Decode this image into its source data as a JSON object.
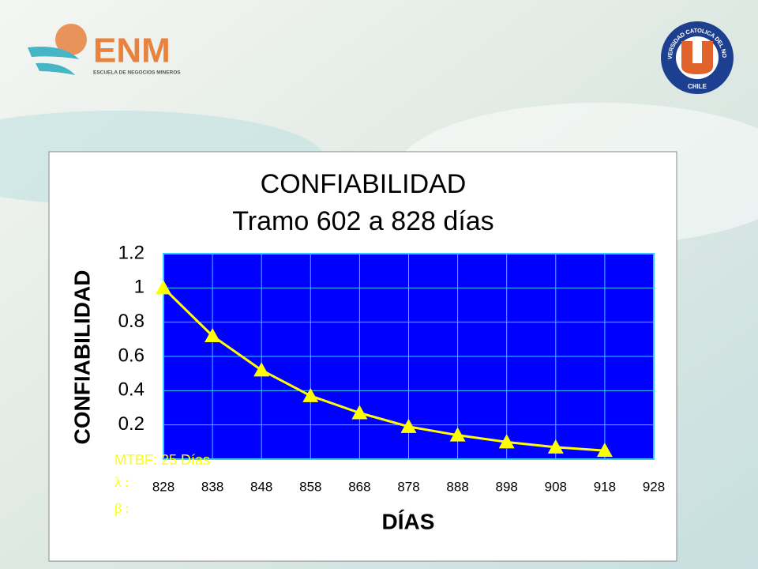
{
  "logos": {
    "enm": "ENM",
    "enm_subtitle": "ESCUELA DE NEGOCIOS MINEROS",
    "ucn_ring": "UNIVERSIDAD CATOLICA DEL NORTE",
    "ucn_country": "CHILE"
  },
  "chart_data": {
    "type": "line",
    "title": "CONFIABILIDAD",
    "subtitle": "Tramo  602 a 828 días",
    "y_label": "CONFIABILIDAD",
    "x_label": "DÍAS",
    "annotations": [
      "MTBF: 25 Días",
      "λ :",
      "β :"
    ],
    "x": [
      828,
      838,
      848,
      858,
      868,
      878,
      888,
      898,
      908,
      918
    ],
    "series": [
      {
        "color": "#ffff00",
        "values": [
          1.0,
          0.72,
          0.52,
          0.37,
          0.27,
          0.19,
          0.14,
          0.1,
          0.07,
          0.05
        ]
      }
    ],
    "xlim": [
      828,
      928
    ],
    "xticks": [
      828,
      838,
      848,
      858,
      868,
      878,
      888,
      898,
      908,
      918,
      928
    ],
    "ylim": [
      0,
      1.2
    ],
    "yticks": [
      0.2,
      0.4,
      0.6,
      0.8,
      1,
      1.2
    ],
    "grid": true,
    "plot_color": "#0000ff",
    "grid_color": "#33ccff"
  }
}
